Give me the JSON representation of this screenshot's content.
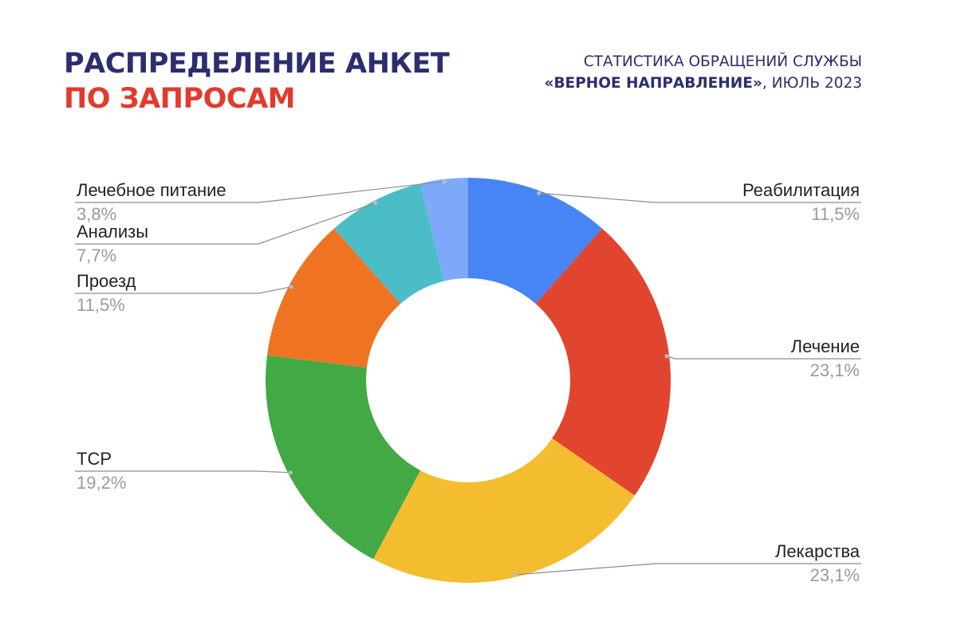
{
  "header": {
    "title_line1": "РАСПРЕДЕЛЕНИЕ АНКЕТ",
    "title_line2": "ПО ЗАПРОСАМ",
    "subtitle_line1": "СТАТИСТИКА ОБРАЩЕНИЙ СЛУЖБЫ",
    "subtitle_line2_bold": "«ВЕРНОЕ НАПРАВЛЕНИЕ»",
    "subtitle_line2_rest": ", ИЮЛЬ 2023"
  },
  "chart_data": {
    "type": "pie",
    "donut": true,
    "legend": "none",
    "categories": [
      "Реабилитация",
      "Лечение",
      "Лекарства",
      "ТСР",
      "Проезд",
      "Анализы",
      "Лечебное питание"
    ],
    "values": [
      11.5,
      23.1,
      23.1,
      19.2,
      11.5,
      7.7,
      3.8
    ],
    "value_labels": [
      "11,5%",
      "23,1%",
      "23,1%",
      "19,2%",
      "11,5%",
      "7,7%",
      "3,8%"
    ],
    "colors": [
      "#4785f4",
      "#e2452f",
      "#f3bd2f",
      "#42a944",
      "#ee7423",
      "#4abdc7",
      "#7ea8f9"
    ]
  }
}
